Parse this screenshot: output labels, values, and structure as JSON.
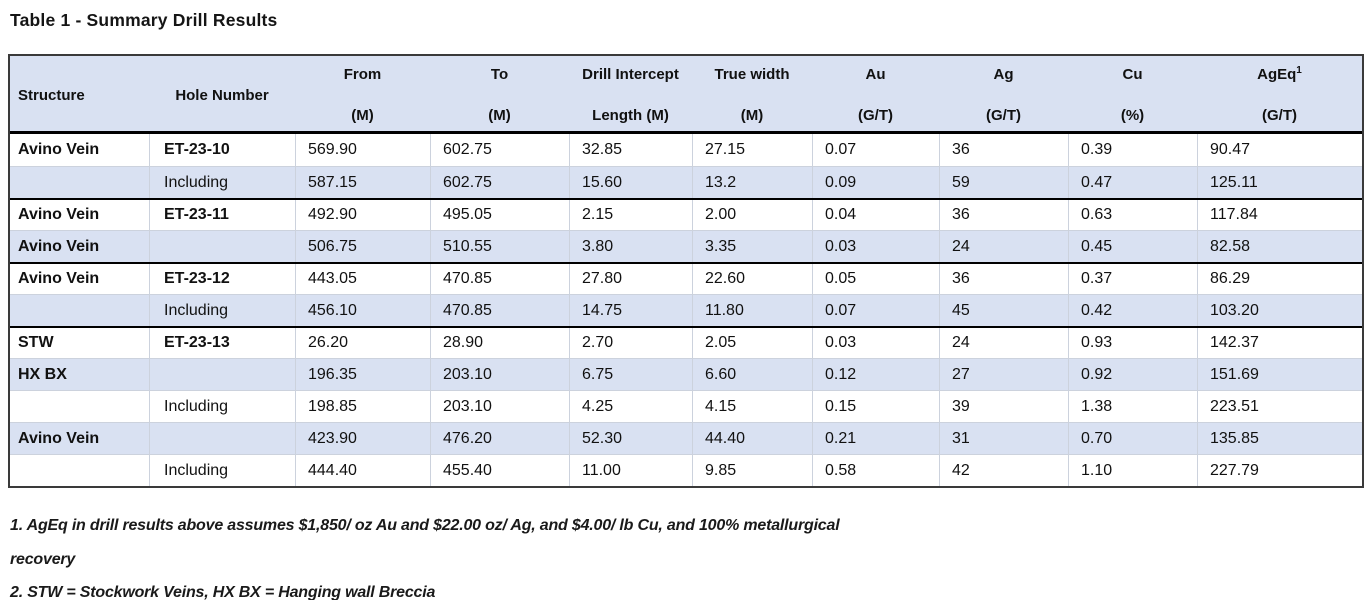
{
  "title": "Table 1 - Summary Drill Results",
  "table": {
    "columns": [
      {
        "key": "structure",
        "label": "Structure",
        "unit": "",
        "vcenter": true,
        "halign": "left"
      },
      {
        "key": "hole-number",
        "label": "Hole Number",
        "unit": "",
        "vcenter": true
      },
      {
        "key": "from",
        "label": "From",
        "unit": "(M)"
      },
      {
        "key": "to",
        "label": "To",
        "unit": "(M)"
      },
      {
        "key": "drill-intercept",
        "label": "Drill Intercept",
        "unit": "Length (M)"
      },
      {
        "key": "true-width",
        "label": "True width",
        "unit": "(M)"
      },
      {
        "key": "au",
        "label": "Au",
        "unit": "(G/T)"
      },
      {
        "key": "ag",
        "label": "Ag",
        "unit": "(G/T)"
      },
      {
        "key": "cu",
        "label": "Cu",
        "unit": "(%)"
      },
      {
        "key": "ageq",
        "label": "AgEq",
        "sup": "1",
        "unit": "(G/T)"
      }
    ],
    "rows": [
      {
        "cells": [
          "Avino Vein",
          "ET-23-10",
          "569.90",
          "602.75",
          "32.85",
          "27.15",
          "0.07",
          "36",
          "0.39",
          "90.47"
        ],
        "shaded": false,
        "bold_hole": true,
        "thick_top": false
      },
      {
        "cells": [
          "",
          "Including",
          "587.15",
          "602.75",
          "15.60",
          "13.2",
          "0.09",
          "59",
          "0.47",
          "125.11"
        ],
        "shaded": true,
        "bold_hole": false,
        "thick_top": false
      },
      {
        "cells": [
          "Avino Vein",
          "ET-23-11",
          "492.90",
          "495.05",
          "2.15",
          "2.00",
          "0.04",
          "36",
          "0.63",
          "117.84"
        ],
        "shaded": false,
        "bold_hole": true,
        "thick_top": true
      },
      {
        "cells": [
          "Avino Vein",
          "",
          "506.75",
          "510.55",
          "3.80",
          "3.35",
          "0.03",
          "24",
          "0.45",
          "82.58"
        ],
        "shaded": true,
        "bold_hole": false,
        "thick_top": false
      },
      {
        "cells": [
          "Avino Vein",
          "ET-23-12",
          "443.05",
          "470.85",
          "27.80",
          "22.60",
          "0.05",
          "36",
          "0.37",
          "86.29"
        ],
        "shaded": false,
        "bold_hole": true,
        "thick_top": true
      },
      {
        "cells": [
          "",
          "Including",
          "456.10",
          "470.85",
          "14.75",
          "11.80",
          "0.07",
          "45",
          "0.42",
          "103.20"
        ],
        "shaded": true,
        "bold_hole": false,
        "thick_top": false
      },
      {
        "cells": [
          "STW",
          "ET-23-13",
          "26.20",
          "28.90",
          "2.70",
          "2.05",
          "0.03",
          "24",
          "0.93",
          "142.37"
        ],
        "shaded": false,
        "bold_hole": true,
        "thick_top": true
      },
      {
        "cells": [
          "HX BX",
          "",
          "196.35",
          "203.10",
          "6.75",
          "6.60",
          "0.12",
          "27",
          "0.92",
          "151.69"
        ],
        "shaded": true,
        "bold_hole": false,
        "thick_top": false
      },
      {
        "cells": [
          "",
          "Including",
          "198.85",
          "203.10",
          "4.25",
          "4.15",
          "0.15",
          "39",
          "1.38",
          "223.51"
        ],
        "shaded": false,
        "bold_hole": false,
        "thick_top": false
      },
      {
        "cells": [
          "Avino Vein",
          "",
          "423.90",
          "476.20",
          "52.30",
          "44.40",
          "0.21",
          "31",
          "0.70",
          "135.85"
        ],
        "shaded": true,
        "bold_hole": false,
        "thick_top": false
      },
      {
        "cells": [
          "",
          "Including",
          "444.40",
          "455.40",
          "11.00",
          "9.85",
          "0.58",
          "42",
          "1.10",
          "227.79"
        ],
        "shaded": false,
        "bold_hole": false,
        "thick_top": false
      }
    ]
  },
  "footnotes": {
    "lines": [
      "1. AgEq in drill results above assumes $1,850/ oz Au and $22.00 oz/ Ag, and $4.00/ lb Cu, and 100% metallurgical",
      "recovery",
      "2. STW = Stockwork Veins, HX BX = Hanging wall Breccia"
    ]
  },
  "colors": {
    "header_bg": "#d9e1f2",
    "stripe_bg": "#d9e1f2",
    "thick_border": "#000000",
    "outer_border": "#3a3a3a",
    "thin_line": "#ccd2dd",
    "text": "#111111"
  }
}
